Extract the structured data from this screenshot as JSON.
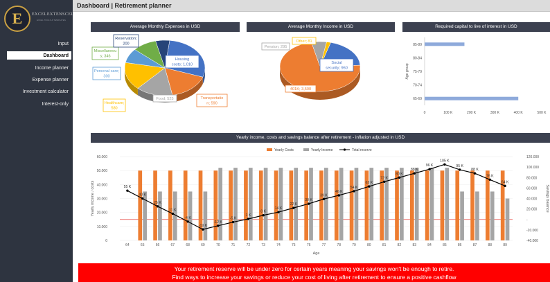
{
  "header": {
    "title": "Dashboard | Retirement planner"
  },
  "logo": {
    "name": "EXCELEXTENSCEL",
    "tagline": "EXCEL TOOLS & TEMPLATES"
  },
  "sidebar": {
    "items": [
      {
        "label": "Input",
        "active": false
      },
      {
        "label": "Dashboard",
        "active": true
      },
      {
        "label": "Income planner",
        "active": false
      },
      {
        "label": "Expense planner",
        "active": false
      },
      {
        "label": "Investment calculator",
        "active": false
      },
      {
        "label": "Interest-only",
        "active": false
      }
    ]
  },
  "panels": {
    "expenses_title": "Average Monthly Expenses in USD",
    "income_title": "Average Monthly Income in USD",
    "capital_title": "Required capital to live of interest in USD",
    "yearly_title": "Yearly income, costs and savings balance after retirement - inflation adjusted in USD"
  },
  "banner": {
    "line1": "Your retirement reserve will be under zero for  certain years meaning your savings won't be enough to retire.",
    "line2": "Find ways to increase your savings or reduce your cost of living after retirement to ensure a positive cashflow"
  },
  "chart_data": [
    {
      "type": "pie",
      "title": "Average Monthly Expenses in USD",
      "slices": [
        {
          "label": "Housing costs",
          "value": 1010,
          "color": "#4472c4"
        },
        {
          "label": "Transportation",
          "value": 590,
          "color": "#ed7d31"
        },
        {
          "label": "Food",
          "value": 525,
          "color": "#a5a5a5"
        },
        {
          "label": "Healthcare",
          "value": 580,
          "color": "#ffc000"
        },
        {
          "label": "Personal care",
          "value": 300,
          "color": "#5b9bd5"
        },
        {
          "label": "Miscellaneous",
          "value": 346,
          "color": "#70ad47"
        },
        {
          "label": "Reservation",
          "value": 200,
          "color": "#264478"
        }
      ],
      "labels_text": [
        "Housing costs; 1,010",
        "Transportation; 590",
        "Food; 525",
        "Healthcare; 580",
        "Personal care; 300",
        "Miscellaneous; 346",
        "Reservation; 200"
      ]
    },
    {
      "type": "pie",
      "title": "Average Monthly Income in USD",
      "slices": [
        {
          "label": "Social security",
          "value": 960,
          "color": "#4472c4"
        },
        {
          "label": "401K",
          "value": 3500,
          "color": "#ed7d31"
        },
        {
          "label": "Pension",
          "value": 295,
          "color": "#a5a5a5"
        },
        {
          "label": "Other",
          "value": 81,
          "color": "#ffc000"
        }
      ],
      "labels_text": [
        "Social security; 960",
        "401K; 3,500",
        "Pension; 295",
        "Other; 81"
      ]
    },
    {
      "type": "bar",
      "title": "Required capital to live of interest in USD",
      "ylabel": "Age group",
      "categories": [
        "65-69",
        "70-74",
        "75-79",
        "80-84",
        "85-89"
      ],
      "values": [
        400000,
        0,
        0,
        0,
        170000
      ],
      "xlim": [
        0,
        500000
      ],
      "xticks": [
        "0",
        "100 K",
        "200 K",
        "300 K",
        "400 K",
        "500 K"
      ]
    },
    {
      "type": "bar",
      "title": "Yearly income, costs and savings balance after retirement - inflation adjusted in USD",
      "xlabel": "Age",
      "ylabel": "Yearly income / costs",
      "y2label": "Savings balance",
      "x": [
        64,
        65,
        66,
        67,
        68,
        69,
        70,
        71,
        72,
        73,
        74,
        75,
        76,
        77,
        78,
        79,
        80,
        81,
        82,
        83,
        84,
        85,
        86,
        87,
        88,
        89
      ],
      "series": [
        {
          "name": "Yearly Costs",
          "color": "#ed7d31",
          "values": [
            0,
            50000,
            50000,
            50000,
            50000,
            50000,
            50000,
            50000,
            50000,
            50000,
            50000,
            50000,
            50000,
            50000,
            50000,
            50000,
            50000,
            50000,
            50000,
            50000,
            50000,
            50000,
            50000,
            50000,
            50000,
            50000
          ]
        },
        {
          "name": "Yearly Income",
          "color": "#a5a5a5",
          "values": [
            0,
            35000,
            35000,
            35000,
            35000,
            35000,
            52000,
            52000,
            52000,
            52000,
            52000,
            52000,
            52000,
            52000,
            52000,
            52000,
            52000,
            52000,
            52000,
            52000,
            52000,
            52000,
            35000,
            35000,
            35000,
            30000
          ]
        },
        {
          "name": "Total reserve",
          "color": "#000000",
          "type": "line",
          "axis": "secondary",
          "values": [
            55000,
            40000,
            25000,
            11000,
            -4000,
            -19000,
            -12000,
            -5000,
            1000,
            8000,
            14000,
            22000,
            30000,
            39000,
            46000,
            54000,
            63000,
            72000,
            80000,
            88000,
            96000,
            105000,
            95000,
            88000,
            76000,
            64000
          ]
        }
      ],
      "point_labels": [
        "55 K",
        "40 K",
        "25 K",
        "11 K",
        "-4 K",
        "-19 K",
        "-12 K",
        "-5 K",
        "1 K",
        "8 K",
        "14 K",
        "22 K",
        "30 K",
        "39 K",
        "46 K",
        "54 K",
        "63 K",
        "72 K",
        "80 K",
        "88 K",
        "96 K",
        "105 K",
        "95 K",
        "88 K",
        "76 K",
        "64 K"
      ],
      "ylim": [
        0,
        60000
      ],
      "y2lim": [
        -40000,
        120000
      ],
      "yticks": [
        "0",
        "10.000",
        "20.000",
        "30.000",
        "40.000",
        "50.000",
        "60.000"
      ],
      "y2ticks": [
        "-40.000",
        "-20.000",
        "-",
        "20.000",
        "40.000",
        "60.000",
        "80.000",
        "100.000",
        "120.000"
      ]
    }
  ]
}
